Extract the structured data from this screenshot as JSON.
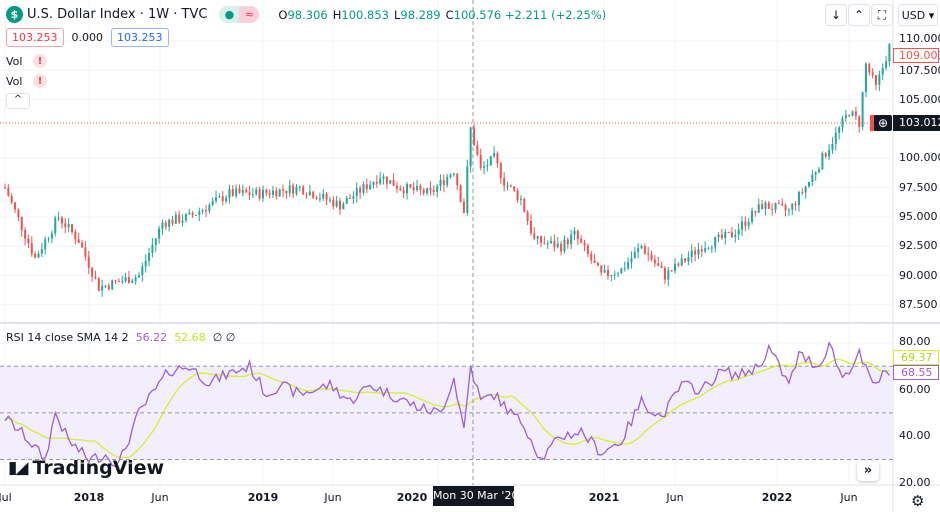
{
  "header": {
    "symbol_icon": "dollar-icon",
    "title": "U.S. Dollar Index · 1W · TVC",
    "open_label": "O",
    "open": "98.306",
    "high_label": "H",
    "high": "100.853",
    "low_label": "L",
    "low": "98.289",
    "close_label": "C",
    "close": "100.576",
    "change": "+2.211 (+2.25%)",
    "bid": "103.253",
    "spread": "0.000",
    "ask": "103.253"
  },
  "indicators": [
    {
      "label": "Vol",
      "status": "!"
    },
    {
      "label": "Vol",
      "status": "!"
    }
  ],
  "collapse_label": "^",
  "toolbar": {
    "down_icon": "↓",
    "collapse_icon": "⌃",
    "fullscreen_icon": "⛶",
    "currency": "USD"
  },
  "price_axis": {
    "labels": [
      "110.000",
      "107.500",
      "105.000",
      "100.000",
      "97.500",
      "95.000",
      "92.500",
      "90.000",
      "87.500"
    ],
    "current_price": "109.003",
    "crosshair_price": "103.012"
  },
  "rsi": {
    "legend": "RSI 14 close SMA 14 2",
    "rsi_value": "56.22",
    "sma_value": "52.68",
    "extra1": "∅",
    "extra2": "∅",
    "axis_labels": [
      "80.00",
      "60.00",
      "40.00",
      "20.00"
    ],
    "rsi_last": "68.55",
    "sma_last": "69.37"
  },
  "time_axis": {
    "labels": [
      "Jul",
      "2018",
      "Jun",
      "2019",
      "Jun",
      "2020",
      "2021",
      "Jun",
      "2022",
      "Jun"
    ],
    "crosshair_date": "Mon 30 Mar '20"
  },
  "watermark": "TradingView",
  "colors": {
    "up": "#26a69a",
    "down": "#ef5350",
    "rsi": "#9c5ed6",
    "sma": "#d4ee3a",
    "band": "#f2eefb"
  },
  "chart_data": {
    "type": "candlestick",
    "title": "U.S. Dollar Index 1W",
    "ylim": [
      86,
      111.5
    ],
    "close_keypoints": [
      [
        0,
        97.5
      ],
      [
        9,
        91.5
      ],
      [
        16,
        95
      ],
      [
        22,
        93
      ],
      [
        28,
        89
      ],
      [
        40,
        90
      ],
      [
        47,
        94.5
      ],
      [
        55,
        95
      ],
      [
        67,
        97
      ],
      [
        76,
        97
      ],
      [
        88,
        97.5
      ],
      [
        100,
        96
      ],
      [
        112,
        98.5
      ],
      [
        118,
        97.5
      ],
      [
        127,
        97
      ],
      [
        134,
        99
      ],
      [
        137,
        95.5
      ],
      [
        139,
        102.5
      ],
      [
        142,
        99
      ],
      [
        146,
        100
      ],
      [
        149,
        98
      ],
      [
        154,
        96.5
      ],
      [
        158,
        93
      ],
      [
        166,
        92.5
      ],
      [
        170,
        93.5
      ],
      [
        178,
        90
      ],
      [
        184,
        90.5
      ],
      [
        190,
        92.5
      ],
      [
        197,
        90
      ],
      [
        208,
        92.5
      ],
      [
        217,
        93.5
      ],
      [
        226,
        96
      ],
      [
        234,
        95.5
      ],
      [
        240,
        98
      ],
      [
        246,
        101
      ],
      [
        252,
        104
      ],
      [
        255,
        103
      ],
      [
        257,
        108
      ],
      [
        260,
        106
      ],
      [
        264,
        109.5
      ]
    ],
    "rsi_keypoints": [
      [
        0,
        48
      ],
      [
        6,
        40
      ],
      [
        12,
        30
      ],
      [
        15,
        50
      ],
      [
        19,
        38
      ],
      [
        25,
        30
      ],
      [
        30,
        32
      ],
      [
        34,
        28
      ],
      [
        40,
        50
      ],
      [
        45,
        60
      ],
      [
        49,
        68
      ],
      [
        55,
        70
      ],
      [
        61,
        63
      ],
      [
        67,
        67
      ],
      [
        73,
        70
      ],
      [
        78,
        58
      ],
      [
        82,
        62
      ],
      [
        88,
        58
      ],
      [
        97,
        62
      ],
      [
        103,
        55
      ],
      [
        109,
        62
      ],
      [
        115,
        58
      ],
      [
        124,
        52
      ],
      [
        130,
        50
      ],
      [
        134,
        65
      ],
      [
        137,
        43
      ],
      [
        139,
        70
      ],
      [
        142,
        55
      ],
      [
        146,
        58
      ],
      [
        151,
        50
      ],
      [
        155,
        45
      ],
      [
        160,
        30
      ],
      [
        166,
        40
      ],
      [
        172,
        42
      ],
      [
        178,
        33
      ],
      [
        184,
        38
      ],
      [
        190,
        55
      ],
      [
        196,
        48
      ],
      [
        202,
        62
      ],
      [
        208,
        60
      ],
      [
        214,
        68
      ],
      [
        219,
        66
      ],
      [
        225,
        70
      ],
      [
        228,
        78
      ],
      [
        234,
        62
      ],
      [
        237,
        75
      ],
      [
        243,
        70
      ],
      [
        246,
        80
      ],
      [
        250,
        65
      ],
      [
        255,
        75
      ],
      [
        259,
        62
      ],
      [
        264,
        68.5
      ]
    ],
    "rsi_ylim": [
      20,
      80
    ],
    "rsi_bands": [
      30,
      50,
      70
    ]
  }
}
